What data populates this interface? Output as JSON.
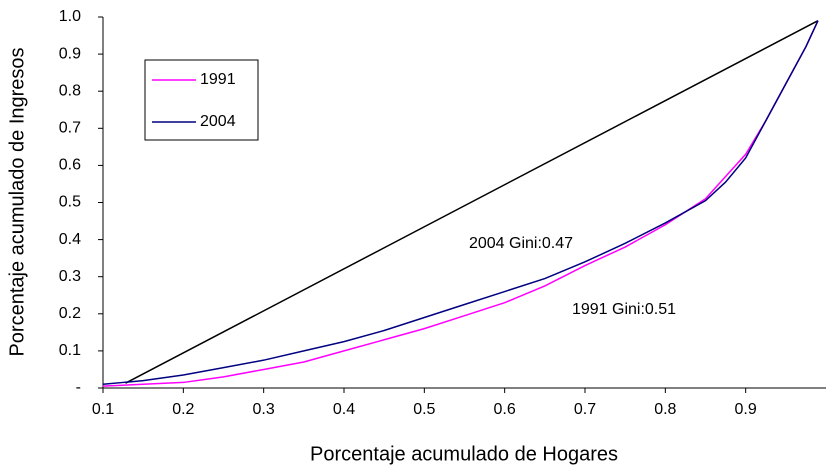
{
  "chart_data": {
    "type": "line",
    "xlabel": "Porcentaje acumulado de Hogares",
    "ylabel": "Porcentaje acumulado de Ingresos",
    "xlim": [
      0.1,
      1.0
    ],
    "ylim": [
      0,
      1
    ],
    "xticks": [
      0.1,
      0.2,
      0.3,
      0.4,
      0.5,
      0.6,
      0.7,
      0.8,
      0.9
    ],
    "yticks": [
      {
        "value": 0,
        "label": "-"
      },
      0.1,
      0.2,
      0.3,
      0.4,
      0.5,
      0.6,
      0.7,
      0.8,
      0.9,
      {
        "value": 1,
        "label": "1.0"
      }
    ],
    "grid": false,
    "legend": "upper left",
    "equality_line": {
      "color": "#000000",
      "x": [
        0.128,
        0.99
      ],
      "values": [
        0.013,
        0.99
      ]
    },
    "series": [
      {
        "name": "1991",
        "color": "#ff00ff",
        "x": [
          0.1,
          0.2,
          0.25,
          0.3,
          0.35,
          0.4,
          0.45,
          0.5,
          0.55,
          0.6,
          0.65,
          0.7,
          0.75,
          0.8,
          0.85,
          0.875,
          0.9,
          0.925,
          0.95,
          0.975,
          0.99
        ],
        "values": [
          0.005,
          0.015,
          0.03,
          0.05,
          0.07,
          0.1,
          0.13,
          0.16,
          0.195,
          0.23,
          0.275,
          0.33,
          0.38,
          0.44,
          0.51,
          0.57,
          0.63,
          0.72,
          0.82,
          0.92,
          0.99
        ]
      },
      {
        "name": "2004",
        "color": "#000080",
        "x": [
          0.1,
          0.125,
          0.15,
          0.2,
          0.25,
          0.3,
          0.35,
          0.4,
          0.45,
          0.5,
          0.55,
          0.6,
          0.65,
          0.7,
          0.75,
          0.8,
          0.85,
          0.875,
          0.9,
          0.925,
          0.95,
          0.975,
          0.99
        ],
        "values": [
          0.01,
          0.015,
          0.02,
          0.035,
          0.055,
          0.075,
          0.1,
          0.125,
          0.155,
          0.19,
          0.225,
          0.26,
          0.295,
          0.34,
          0.39,
          0.445,
          0.505,
          0.555,
          0.62,
          0.72,
          0.82,
          0.92,
          0.99
        ]
      }
    ],
    "annotations": [
      "2004 Gini:0.47",
      "1991 Gini:0.51"
    ]
  }
}
